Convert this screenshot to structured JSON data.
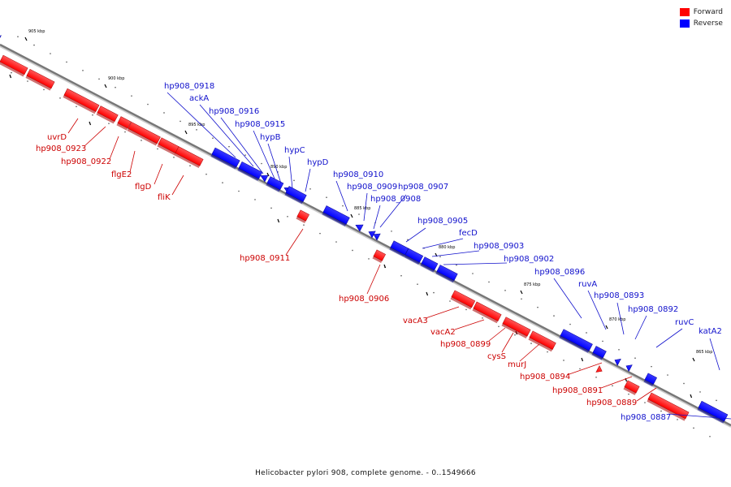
{
  "legend": [
    {
      "label": "Forward",
      "color": "#ff0000"
    },
    {
      "label": "Reverse",
      "color": "#0000ff"
    }
  ],
  "caption": "Helicobacter pylori 908, complete genome. - 0..1549666",
  "kbp_marks": [
    {
      "label": "905 kbp",
      "strand": "top"
    },
    {
      "label": "900 kbp",
      "strand": "top"
    },
    {
      "label": "895 kbp",
      "strand": "top"
    },
    {
      "label": "890 kbp",
      "strand": "top"
    },
    {
      "label": "885 kbp",
      "strand": "top"
    },
    {
      "label": "880 kbp",
      "strand": "top"
    },
    {
      "label": "875 kbp",
      "strand": "top"
    },
    {
      "label": "870 kbp",
      "strand": "top"
    },
    {
      "label": "865 kbp",
      "strand": "top"
    }
  ],
  "genes_forward": [
    {
      "name": "uvrD"
    },
    {
      "name": "hp908_0923"
    },
    {
      "name": "hp908_0922"
    },
    {
      "name": "flgE2"
    },
    {
      "name": "flgD"
    },
    {
      "name": "fliK"
    },
    {
      "name": "hp908_0911"
    },
    {
      "name": "hp908_0906"
    },
    {
      "name": "vacA3"
    },
    {
      "name": "vacA2"
    },
    {
      "name": "hp908_0899"
    },
    {
      "name": "cysS"
    },
    {
      "name": "murJ"
    },
    {
      "name": "hp908_0894"
    },
    {
      "name": "hp908_0891"
    },
    {
      "name": "hp908_0889"
    }
  ],
  "genes_reverse": [
    {
      "name": "hp908_0918"
    },
    {
      "name": "ackA"
    },
    {
      "name": "hp908_0916"
    },
    {
      "name": "hp908_0915"
    },
    {
      "name": "hypB"
    },
    {
      "name": "hypC"
    },
    {
      "name": "hypD"
    },
    {
      "name": "hp908_0910"
    },
    {
      "name": "hp908_0909"
    },
    {
      "name": "hp908_0907"
    },
    {
      "name": "hp908_0908"
    },
    {
      "name": "hp908_0905"
    },
    {
      "name": "fecD"
    },
    {
      "name": "hp908_0903"
    },
    {
      "name": "hp908_0902"
    },
    {
      "name": "hp908_0896"
    },
    {
      "name": "ruvA"
    },
    {
      "name": "hp908_0893"
    },
    {
      "name": "hp908_0892"
    },
    {
      "name": "ruvC"
    },
    {
      "name": "katA2"
    },
    {
      "name": "hp908_0887"
    }
  ]
}
